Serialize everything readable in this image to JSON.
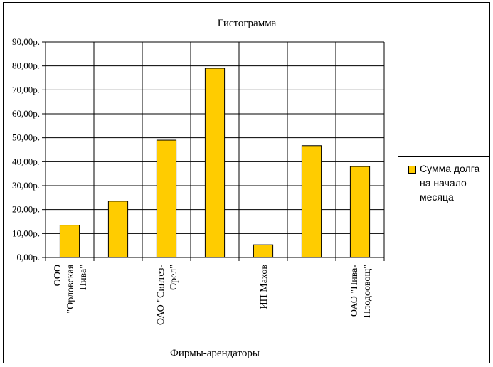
{
  "chart_data": {
    "type": "bar",
    "title": "Гистограмма",
    "xlabel": "Фирмы-арендаторы",
    "ylabel": "",
    "ylim": [
      0,
      90
    ],
    "yticks": [
      "0,00р.",
      "10,00р.",
      "20,00р.",
      "30,00р.",
      "40,00р.",
      "50,00р.",
      "60,00р.",
      "70,00р.",
      "80,00р.",
      "90,00р."
    ],
    "categories": [
      "ООО \"Орловская Нива\"",
      "",
      "ОАО \"Синтез-Орел\"",
      "",
      "ИП Махов",
      "",
      "ОАО \"Нива-Плодоовощ\""
    ],
    "category_lines": [
      [
        "ООО",
        "\"Орловская",
        "Нива\""
      ],
      [],
      [
        "ОАО \"Синтез-",
        "Орел\""
      ],
      [],
      [
        "ИП Махов"
      ],
      [],
      [
        "ОАО \"Нива-",
        "Плодоовощ\""
      ]
    ],
    "series": [
      {
        "name": "Сумма долга на начало месяца",
        "values": [
          13.5,
          23.5,
          49,
          79,
          5.3,
          46.7,
          38
        ],
        "color": "#FFCC00"
      }
    ],
    "grid": true,
    "legend": "right"
  },
  "legend": {
    "lines": [
      "Сумма долга",
      "на начало",
      "месяца"
    ]
  }
}
